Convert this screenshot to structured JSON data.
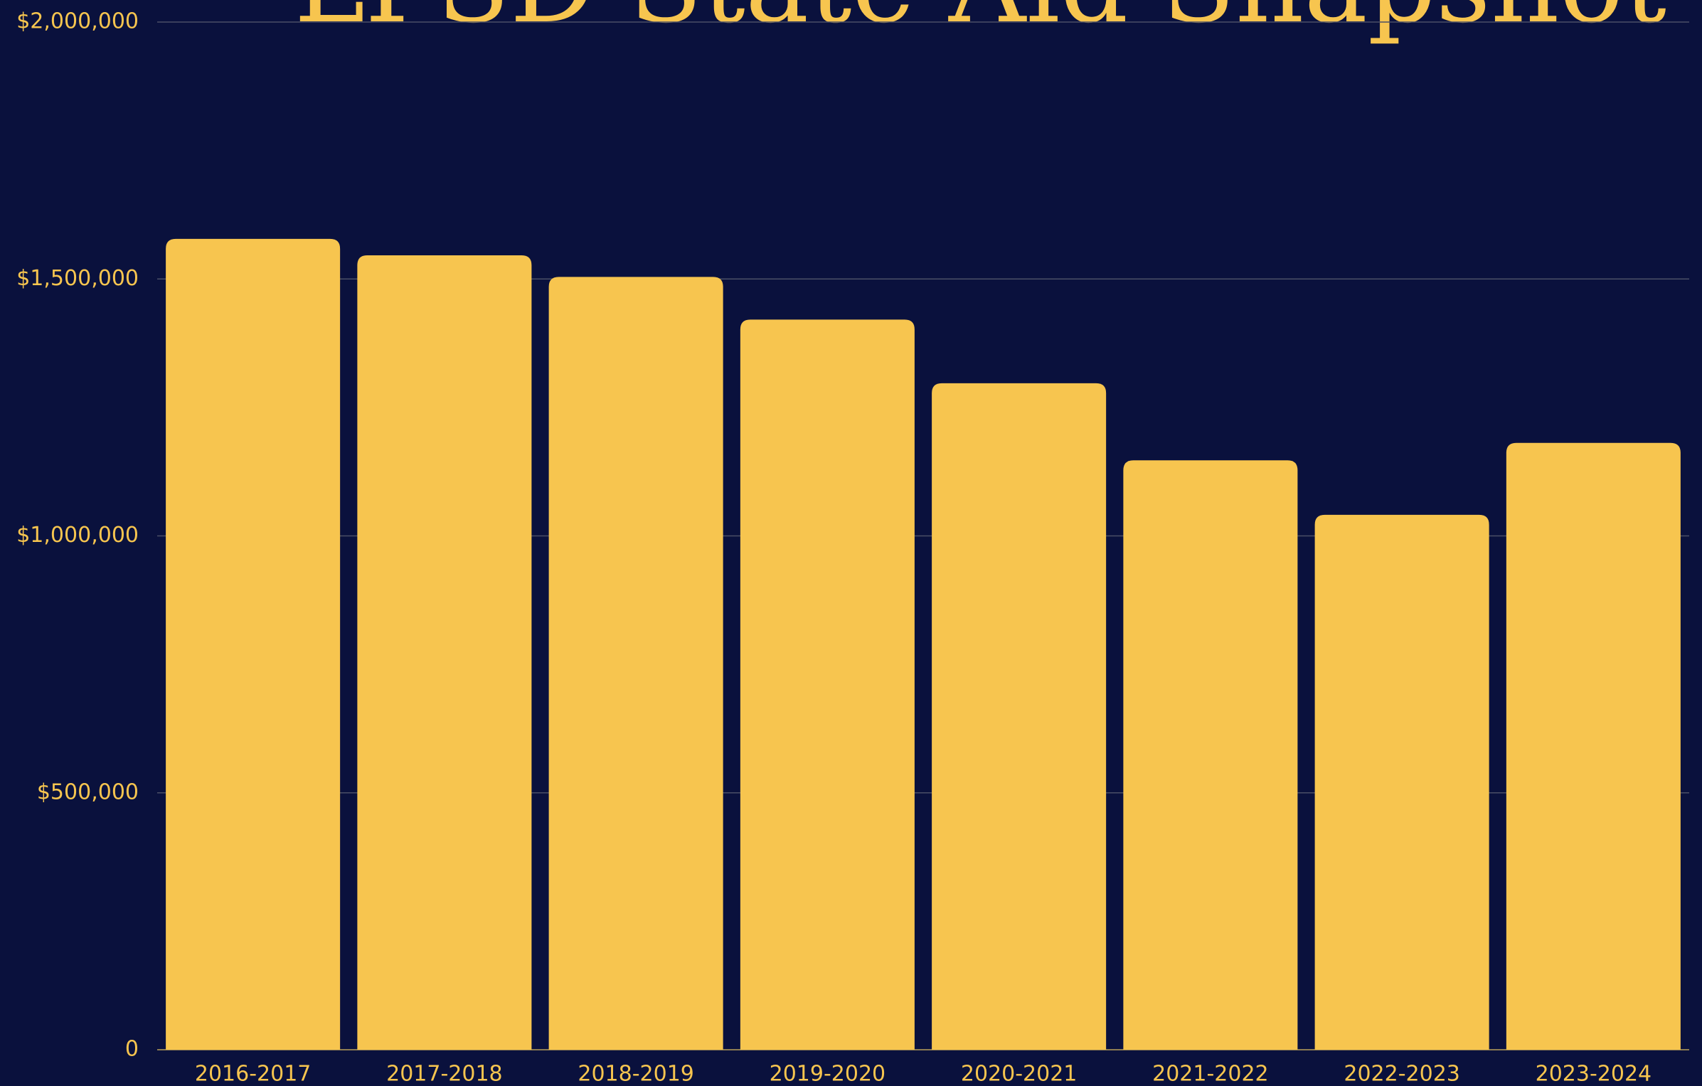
{
  "chart_data": {
    "type": "bar",
    "title": "LPSD State Aid Snapshot",
    "categories": [
      "2016-2017",
      "2017-2018",
      "2018-2019",
      "2019-2020",
      "2020-2021",
      "2021-2022",
      "2022-2023",
      "2023-2024"
    ],
    "values": [
      1578000,
      1546000,
      1504000,
      1421000,
      1297000,
      1147000,
      1041000,
      1181000
    ],
    "color": "#f7c54f",
    "ylim": [
      0,
      2000000
    ],
    "yticks": [
      0,
      {
        "value": 500000,
        "label": "$500,000"
      },
      {
        "value": 1000000,
        "label": "$1,000,000"
      },
      {
        "value": 1500000,
        "label": "$1,500,000"
      },
      {
        "value": 2000000,
        "label": "$2,000,000"
      }
    ],
    "grid": true
  }
}
